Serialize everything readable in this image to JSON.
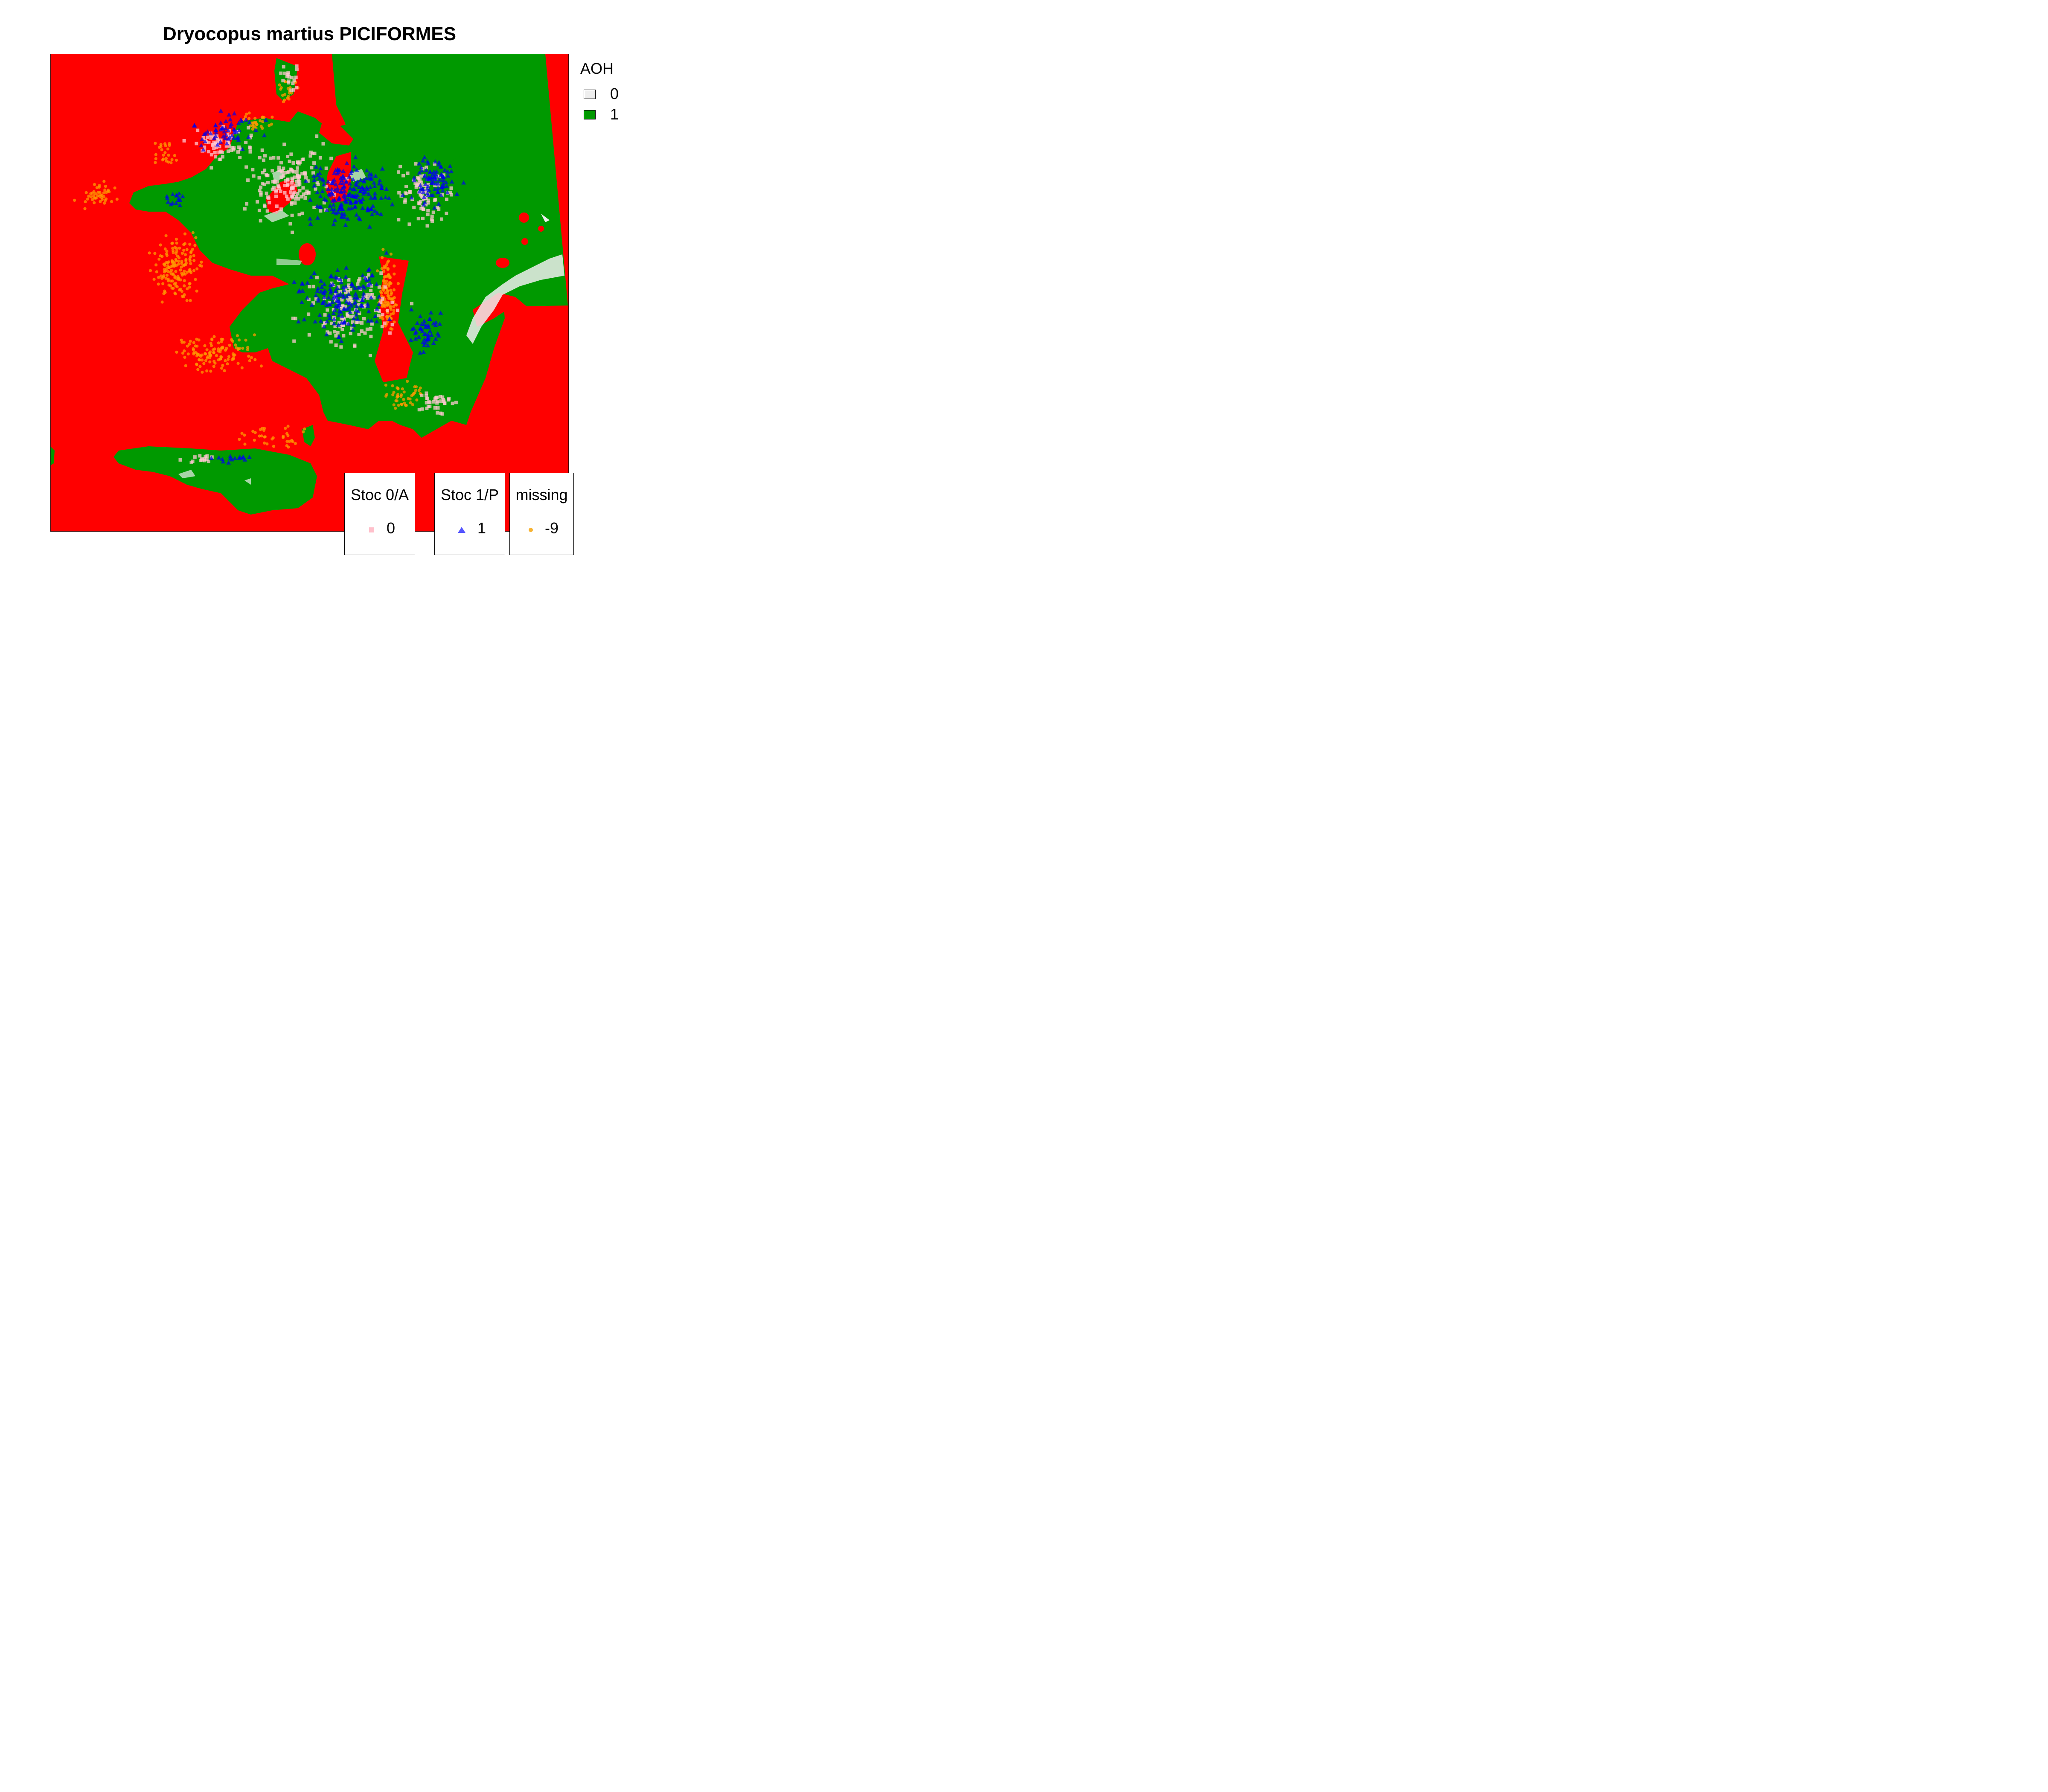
{
  "title": "Dryocopus martius PICIFORMES",
  "legend_aoh": {
    "title": "AOH",
    "items": [
      {
        "label": "0",
        "color": "#eeeeee"
      },
      {
        "label": "1",
        "color": "#009900"
      }
    ]
  },
  "point_legends": [
    {
      "title": "Stoc 0/A",
      "label": "0",
      "color": "#ffc0cb",
      "shape": "square"
    },
    {
      "title": "Stoc 1/P",
      "label": "1",
      "color": "#3333ff",
      "shape": "triangle"
    },
    {
      "title": "missing",
      "label": "-9",
      "color": "#f5a000",
      "shape": "circle"
    }
  ],
  "colors": {
    "outside": "#ff0000",
    "habitat": "#009900",
    "non_habitat": "#eeeeee",
    "absence": "#ffc0cb",
    "presence": "#0000ee",
    "missing": "#ff9900"
  }
}
